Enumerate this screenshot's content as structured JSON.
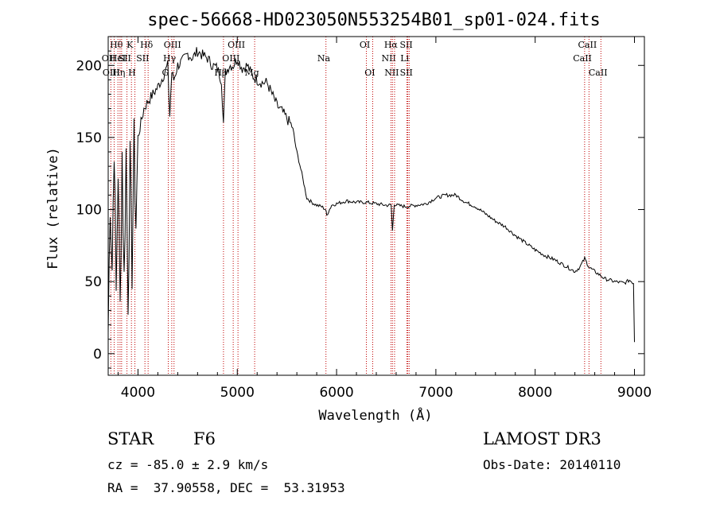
{
  "chart_data": {
    "type": "line",
    "title": "spec-56668-HD023050N553254B01_sp01-024.fits",
    "xlabel": "Wavelength (Å)",
    "ylabel": "Flux (relative)",
    "xlim": [
      3700,
      9100
    ],
    "ylim": [
      -15,
      220
    ],
    "xticks": [
      4000,
      5000,
      6000,
      7000,
      8000,
      9000
    ],
    "yticks": [
      0,
      50,
      100,
      150,
      200
    ],
    "series": [
      {
        "name": "flux",
        "x": [
          3700,
          3720,
          3740,
          3760,
          3780,
          3800,
          3820,
          3840,
          3860,
          3880,
          3900,
          3920,
          3940,
          3960,
          3980,
          4000,
          4030,
          4060,
          4100,
          4150,
          4200,
          4250,
          4300,
          4320,
          4340,
          4360,
          4400,
          4450,
          4500,
          4550,
          4600,
          4650,
          4700,
          4750,
          4800,
          4840,
          4861,
          4880,
          4920,
          4960,
          5000,
          5050,
          5100,
          5150,
          5200,
          5250,
          5300,
          5350,
          5400,
          5450,
          5500,
          5550,
          5600,
          5650,
          5700,
          5750,
          5800,
          5850,
          5890,
          5900,
          5950,
          6000,
          6100,
          6200,
          6300,
          6400,
          6500,
          6550,
          6563,
          6580,
          6600,
          6700,
          6800,
          6900,
          7000,
          7100,
          7200,
          7300,
          7400,
          7500,
          7600,
          7700,
          7800,
          7900,
          8000,
          8100,
          8200,
          8300,
          8400,
          8450,
          8498,
          8542,
          8600,
          8662,
          8700,
          8800,
          8900,
          8950,
          8990,
          9000
        ],
        "y": [
          15,
          110,
          60,
          150,
          40,
          130,
          30,
          140,
          50,
          140,
          40,
          130,
          60,
          145,
          90,
          150,
          160,
          170,
          175,
          180,
          185,
          192,
          200,
          165,
          195,
          190,
          200,
          203,
          208,
          205,
          210,
          207,
          205,
          200,
          198,
          190,
          160,
          195,
          200,
          200,
          205,
          198,
          200,
          193,
          190,
          188,
          188,
          180,
          172,
          168,
          163,
          158,
          140,
          125,
          108,
          105,
          103,
          102,
          100,
          96,
          103,
          104,
          106,
          105,
          105,
          104,
          103,
          103,
          85,
          104,
          103,
          102,
          103,
          104,
          108,
          110,
          110,
          105,
          102,
          97,
          92,
          88,
          82,
          77,
          72,
          68,
          65,
          61,
          57,
          60,
          66,
          60,
          57,
          54,
          52,
          50,
          49,
          51,
          49,
          8
        ]
      }
    ],
    "spectral_lines": [
      {
        "name": "Hθ",
        "x": 3798,
        "row": 0
      },
      {
        "name": "OII",
        "x": 3727,
        "row": 1
      },
      {
        "name": "OIII",
        "x": 3760,
        "row": 2
      },
      {
        "name": "HeI",
        "x": 3819,
        "row": 1
      },
      {
        "name": "Hη",
        "x": 3835,
        "row": 2
      },
      {
        "name": "K",
        "x": 3934,
        "row": 0
      },
      {
        "name": "SII",
        "x": 3889,
        "row": 1
      },
      {
        "name": "H",
        "x": 3969,
        "row": 2
      },
      {
        "name": "Hδ",
        "x": 4102,
        "row": 0
      },
      {
        "name": "SII",
        "x": 4070,
        "row": 1
      },
      {
        "name": "OIII",
        "x": 4363,
        "row": 0
      },
      {
        "name": "Hγ",
        "x": 4340,
        "row": 1
      },
      {
        "name": "G",
        "x": 4305,
        "row": 2
      },
      {
        "name": "OIII",
        "x": 5007,
        "row": 0
      },
      {
        "name": "OIII",
        "x": 4959,
        "row": 1
      },
      {
        "name": "Hβ",
        "x": 4861,
        "row": 2
      },
      {
        "name": "Mg",
        "x": 5175,
        "row": 2
      },
      {
        "name": "Na",
        "x": 5893,
        "row": 1
      },
      {
        "name": "OI",
        "x": 6300,
        "row": 0
      },
      {
        "name": "OI",
        "x": 6364,
        "row": 2
      },
      {
        "name": "Hα",
        "x": 6563,
        "row": 0
      },
      {
        "name": "SII",
        "x": 6717,
        "row": 0
      },
      {
        "name": "NII",
        "x": 6548,
        "row": 1
      },
      {
        "name": "Li",
        "x": 6708,
        "row": 1
      },
      {
        "name": "NII",
        "x": 6584,
        "row": 2
      },
      {
        "name": "SII",
        "x": 6731,
        "row": 2
      },
      {
        "name": "CaII",
        "x": 8542,
        "row": 0
      },
      {
        "name": "CaII",
        "x": 8498,
        "row": 1
      },
      {
        "name": "CaII",
        "x": 8662,
        "row": 2
      }
    ],
    "line_color": "#000000",
    "marker_color": "#c00000"
  },
  "info": {
    "type_label": "STAR",
    "subclass": "F6",
    "survey": "LAMOST DR3",
    "cz": "cz = -85.0 ± 2.9 km/s",
    "obs_date": "Obs-Date: 20140110",
    "coords": "RA =  37.90558, DEC =  53.31953"
  }
}
